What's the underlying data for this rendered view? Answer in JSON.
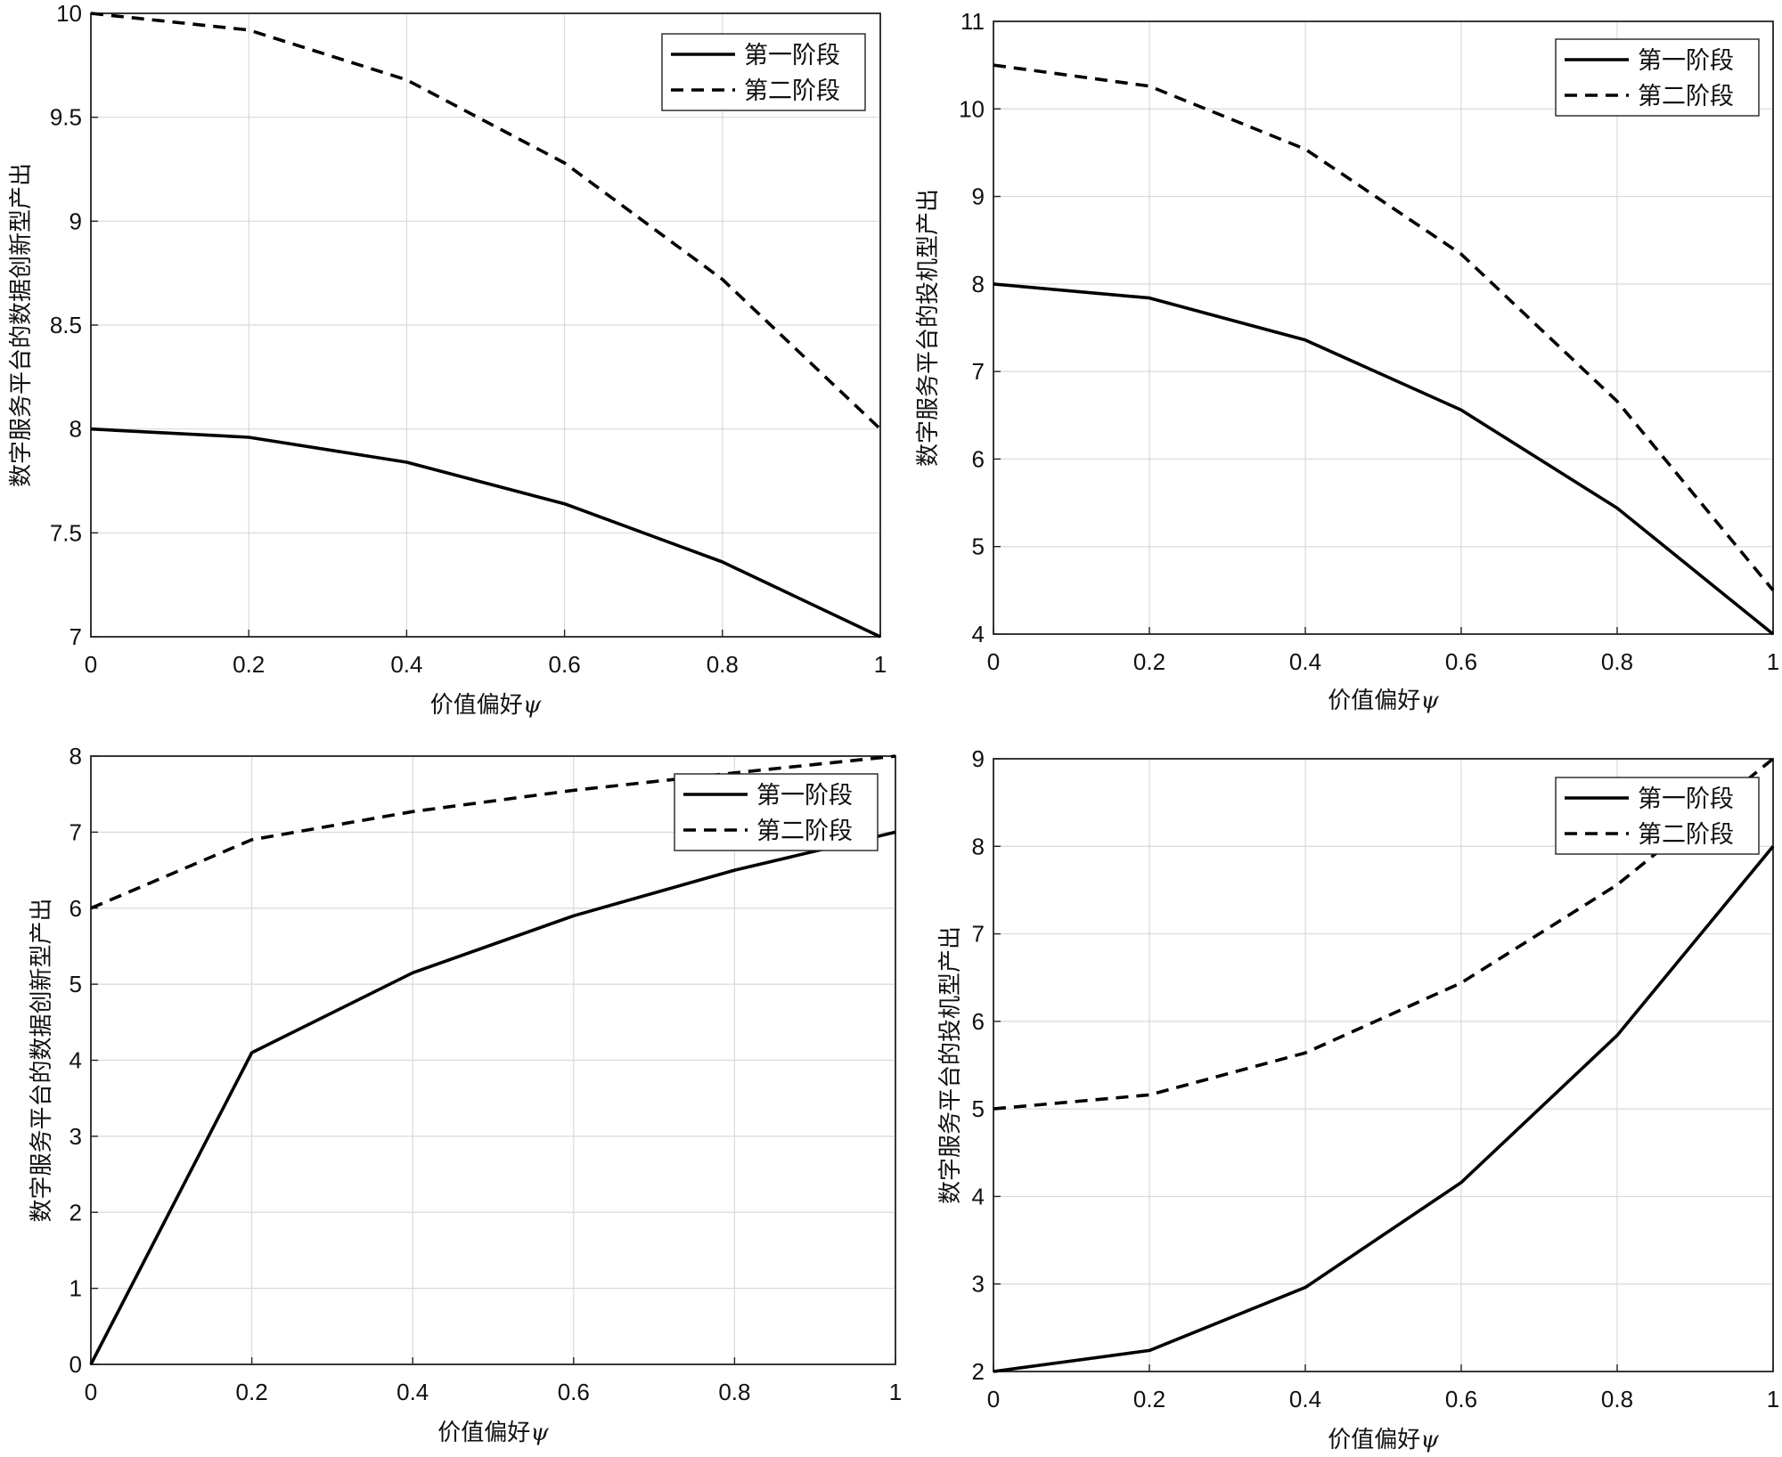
{
  "chart_data": [
    {
      "type": "line",
      "title": "",
      "xlabel": "价值偏好",
      "xlabel_symbol": "ψ",
      "ylabel": "数字服务平台的数据创新型产出",
      "x": [
        0,
        0.2,
        0.4,
        0.6,
        0.8,
        1
      ],
      "xlim": [
        0,
        1
      ],
      "ylim": [
        7,
        10
      ],
      "xticks": [
        "0",
        "0.2",
        "0.4",
        "0.6",
        "0.8",
        "1"
      ],
      "yticks": [
        "7",
        "7.5",
        "8",
        "8.5",
        "9",
        "9.5",
        "10"
      ],
      "ytick_values": [
        7,
        7.5,
        8,
        8.5,
        9,
        9.5,
        10
      ],
      "grid": true,
      "legend_position": "top-right",
      "series": [
        {
          "name": "第一阶段",
          "style": "solid",
          "values": [
            8.0,
            7.96,
            7.84,
            7.64,
            7.36,
            7.0
          ]
        },
        {
          "name": "第二阶段",
          "style": "dashed",
          "values": [
            10.0,
            9.92,
            9.68,
            9.28,
            8.72,
            8.0
          ]
        }
      ]
    },
    {
      "type": "line",
      "title": "",
      "xlabel": "价值偏好",
      "xlabel_symbol": "ψ",
      "ylabel": "数字服务平台的投机型产出",
      "x": [
        0,
        0.2,
        0.4,
        0.6,
        0.8,
        1
      ],
      "xlim": [
        0,
        1
      ],
      "ylim": [
        4,
        11
      ],
      "xticks": [
        "0",
        "0.2",
        "0.4",
        "0.6",
        "0.8",
        "1"
      ],
      "yticks": [
        "4",
        "5",
        "6",
        "7",
        "8",
        "9",
        "10",
        "11"
      ],
      "ytick_values": [
        4,
        5,
        6,
        7,
        8,
        9,
        10,
        11
      ],
      "grid": true,
      "legend_position": "top-right",
      "series": [
        {
          "name": "第一阶段",
          "style": "solid",
          "values": [
            8.0,
            7.84,
            7.36,
            6.56,
            5.44,
            4.0
          ]
        },
        {
          "name": "第二阶段",
          "style": "dashed",
          "values": [
            10.5,
            10.26,
            9.54,
            8.34,
            6.66,
            4.5
          ]
        }
      ]
    },
    {
      "type": "line",
      "title": "",
      "xlabel": "价值偏好",
      "xlabel_symbol": "ψ",
      "ylabel": "数字服务平台的数据创新型产出",
      "x": [
        0,
        0.2,
        0.4,
        0.6,
        0.8,
        1
      ],
      "xlim": [
        0,
        1
      ],
      "ylim": [
        0,
        8
      ],
      "xticks": [
        "0",
        "0.2",
        "0.4",
        "0.6",
        "0.8",
        "1"
      ],
      "yticks": [
        "0",
        "1",
        "2",
        "3",
        "4",
        "5",
        "6",
        "7",
        "8"
      ],
      "ytick_values": [
        0,
        1,
        2,
        3,
        4,
        5,
        6,
        7,
        8
      ],
      "grid": true,
      "legend_position": "top-right",
      "series": [
        {
          "name": "第一阶段",
          "style": "solid",
          "values": [
            0.0,
            4.1,
            5.15,
            5.9,
            6.5,
            7.0
          ]
        },
        {
          "name": "第二阶段",
          "style": "dashed",
          "values": [
            6.0,
            6.9,
            7.27,
            7.55,
            7.78,
            8.0
          ]
        }
      ]
    },
    {
      "type": "line",
      "title": "",
      "xlabel": "价值偏好",
      "xlabel_symbol": "ψ",
      "ylabel": "数字服务平台的投机型产出",
      "x": [
        0,
        0.2,
        0.4,
        0.6,
        0.8,
        1
      ],
      "xlim": [
        0,
        1
      ],
      "ylim": [
        2,
        9
      ],
      "xticks": [
        "0",
        "0.2",
        "0.4",
        "0.6",
        "0.8",
        "1"
      ],
      "yticks": [
        "2",
        "3",
        "4",
        "5",
        "6",
        "7",
        "8",
        "9"
      ],
      "ytick_values": [
        2,
        3,
        4,
        5,
        6,
        7,
        8,
        9
      ],
      "grid": true,
      "legend_position": "top-right",
      "series": [
        {
          "name": "第一阶段",
          "style": "solid",
          "values": [
            2.0,
            2.24,
            2.96,
            4.16,
            5.84,
            8.0
          ]
        },
        {
          "name": "第二阶段",
          "style": "dashed",
          "values": [
            5.0,
            5.16,
            5.64,
            6.44,
            7.56,
            9.0
          ]
        }
      ]
    }
  ]
}
